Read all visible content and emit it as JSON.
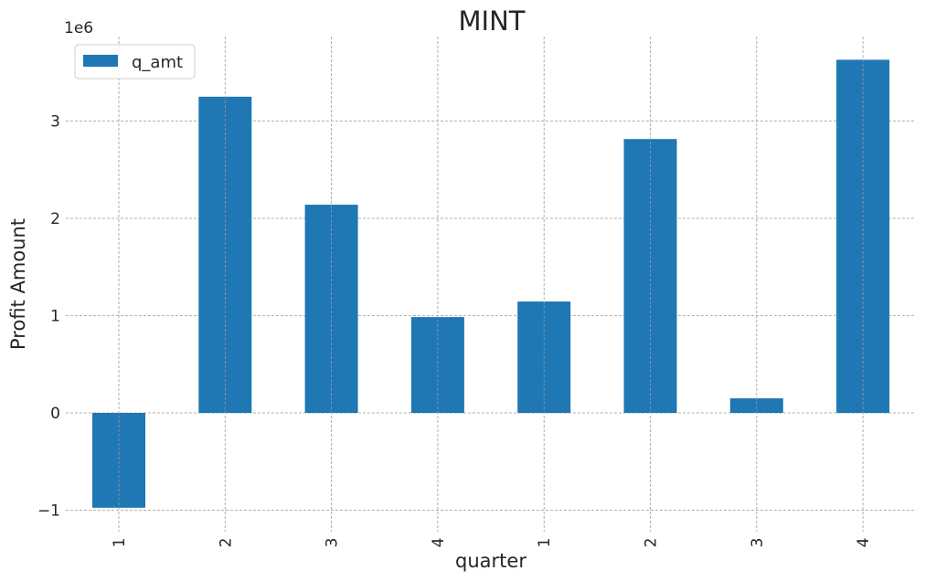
{
  "chart_data": {
    "type": "bar",
    "title": "MINT",
    "xlabel": "quarter",
    "ylabel": "Profit Amount",
    "y_scale_label": "1e6",
    "categories": [
      "1",
      "2",
      "3",
      "4",
      "1",
      "2",
      "3",
      "4"
    ],
    "series": [
      {
        "name": "q_amt",
        "color": "#1f77b4",
        "values": [
          -975000,
          3250000,
          2140000,
          985000,
          1145000,
          2815000,
          150000,
          3630000
        ]
      }
    ],
    "y_ticks": [
      -1,
      0,
      1,
      2,
      3
    ],
    "ylim": [
      -1.0,
      3.9
    ],
    "grid": true,
    "legend_position": "top-left"
  }
}
